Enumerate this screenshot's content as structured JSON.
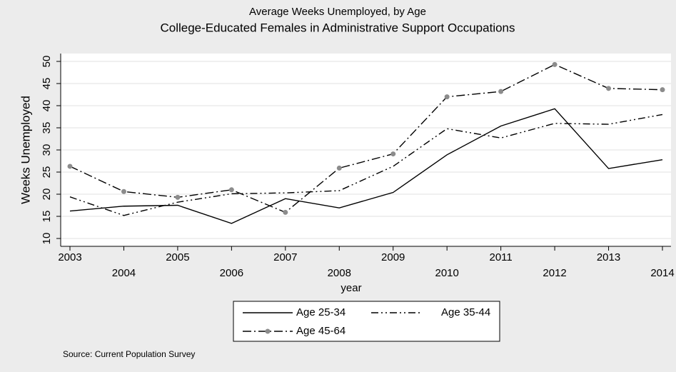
{
  "chart_data": {
    "type": "line",
    "title": "Average Weeks Unemployed, by Age",
    "subtitle": "College-Educated Females in Administrative Support Occupations",
    "x_label": "year",
    "y_label": "Weeks Unemployed",
    "note": "Source: Current Population Survey",
    "x": [
      2003,
      2004,
      2005,
      2006,
      2007,
      2008,
      2009,
      2010,
      2011,
      2012,
      2013,
      2014
    ],
    "xlim": [
      2003,
      2014
    ],
    "xticks": [
      2003,
      2004,
      2005,
      2006,
      2007,
      2008,
      2009,
      2010,
      2011,
      2012,
      2013,
      2014
    ],
    "ylim": [
      10,
      50
    ],
    "yticks": [
      10,
      15,
      20,
      25,
      30,
      35,
      40,
      45,
      50
    ],
    "grid": true,
    "series": [
      {
        "name": "Age 25-34",
        "color": "#000000",
        "values": [
          16.2,
          17.3,
          17.5,
          13.4,
          19.0,
          16.9,
          20.4,
          28.9,
          35.4,
          39.3,
          25.8,
          27.8
        ]
      },
      {
        "name": "Age 35-44",
        "color": "#000000",
        "values": [
          19.4,
          15.2,
          18.2,
          20.1,
          20.3,
          20.8,
          26.3,
          34.8,
          32.7,
          36.0,
          35.8,
          38.0
        ]
      },
      {
        "name": "Age 45-64",
        "color": "#000000",
        "marker_color": "#8c8c8c",
        "values": [
          26.3,
          20.6,
          19.3,
          21.0,
          15.9,
          25.9,
          29.1,
          42.0,
          43.2,
          49.3,
          43.9,
          43.6
        ]
      }
    ]
  }
}
